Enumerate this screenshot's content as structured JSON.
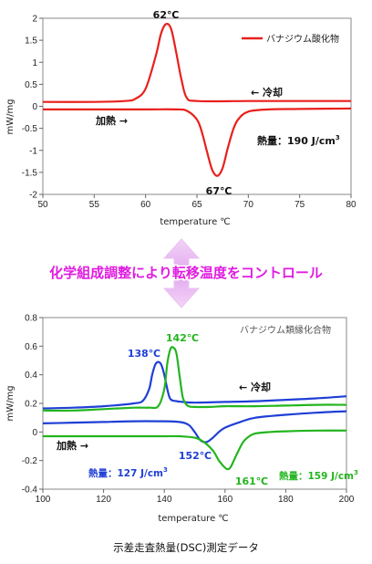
{
  "chart_data": [
    {
      "type": "line",
      "xlabel": "temperature ℃",
      "ylabel": "mW/mg",
      "xlim": [
        50,
        80
      ],
      "ylim": [
        -2,
        2
      ],
      "x_ticks": [
        50,
        55,
        60,
        65,
        70,
        75,
        80
      ],
      "y_ticks": [
        2,
        1.5,
        1,
        0.5,
        0,
        -0.5,
        -1,
        -1.5,
        -2
      ],
      "grid": false,
      "legend": {
        "position": "top-right",
        "entries": [
          "バナジウム酸化物"
        ]
      },
      "series": [
        {
          "name": "バナジウム酸化物",
          "color": "#e8201c",
          "x": [
            50,
            55,
            58,
            59,
            60,
            61,
            61.5,
            62,
            62.5,
            63,
            63.5,
            64,
            65,
            70,
            75,
            80
          ],
          "y": [
            0.1,
            0.1,
            0.12,
            0.17,
            0.4,
            1.15,
            1.65,
            1.87,
            1.75,
            1.2,
            0.6,
            0.2,
            0.12,
            0.12,
            0.12,
            0.12
          ]
        },
        {
          "name": "バナジウム酸化物",
          "color": "#e8201c",
          "x": [
            50,
            55,
            60,
            63,
            64,
            65,
            65.5,
            66,
            66.5,
            67,
            67.5,
            68,
            68.5,
            69,
            70,
            72,
            75,
            80
          ],
          "y": [
            -0.07,
            -0.07,
            -0.07,
            -0.07,
            -0.1,
            -0.3,
            -0.6,
            -1.05,
            -1.45,
            -1.58,
            -1.4,
            -0.95,
            -0.55,
            -0.3,
            -0.12,
            -0.07,
            -0.06,
            -0.05
          ]
        }
      ],
      "annotations": {
        "peak_cool": "62℃",
        "peak_heat": "67℃",
        "cool_label": "←  冷却",
        "heat_label": "加熱  →",
        "enthalpy": "熱量：190 J/cm",
        "enthalpy_sup": "3"
      }
    },
    {
      "type": "line",
      "xlabel": "temperature ℃",
      "ylabel": "mW/mg",
      "xlim": [
        100,
        200
      ],
      "ylim": [
        -0.4,
        0.8
      ],
      "x_ticks": [
        100,
        120,
        140,
        160,
        180,
        200
      ],
      "y_ticks": [
        0.8,
        0.6,
        0.4,
        0.2,
        0,
        -0.2,
        -0.4
      ],
      "grid": false,
      "title_in_plot": "バナジウム類縁化合物",
      "series": [
        {
          "color": "#1f3fd6",
          "x": [
            100,
            110,
            120,
            130,
            133,
            135,
            136,
            137,
            138,
            139,
            140,
            141,
            142,
            144,
            146,
            150,
            160,
            170,
            180,
            190,
            200
          ],
          "y": [
            0.165,
            0.17,
            0.18,
            0.2,
            0.22,
            0.3,
            0.4,
            0.47,
            0.49,
            0.47,
            0.4,
            0.3,
            0.23,
            0.215,
            0.21,
            0.205,
            0.21,
            0.215,
            0.225,
            0.235,
            0.25
          ]
        },
        {
          "color": "#1f3fd6",
          "x": [
            100,
            110,
            120,
            130,
            140,
            145,
            148,
            150,
            152,
            154,
            156,
            158,
            160,
            165,
            170,
            180,
            190,
            200
          ],
          "y": [
            0.06,
            0.065,
            0.07,
            0.075,
            0.075,
            0.07,
            0.05,
            0.0,
            -0.06,
            -0.07,
            -0.04,
            0.0,
            0.03,
            0.07,
            0.1,
            0.12,
            0.135,
            0.145
          ]
        },
        {
          "color": "#23b51f",
          "x": [
            100,
            110,
            120,
            130,
            135,
            138,
            140,
            141,
            142,
            143,
            144,
            145,
            146,
            147,
            148,
            150,
            155,
            160,
            170,
            180,
            190,
            200
          ],
          "y": [
            0.15,
            0.15,
            0.16,
            0.17,
            0.17,
            0.18,
            0.3,
            0.48,
            0.58,
            0.59,
            0.55,
            0.4,
            0.25,
            0.2,
            0.18,
            0.175,
            0.175,
            0.18,
            0.18,
            0.185,
            0.19,
            0.19
          ]
        },
        {
          "color": "#23b51f",
          "x": [
            100,
            110,
            120,
            130,
            140,
            145,
            150,
            153,
            156,
            158,
            160,
            161,
            162,
            164,
            166,
            168,
            170,
            175,
            180,
            190,
            200
          ],
          "y": [
            -0.03,
            -0.03,
            -0.03,
            -0.03,
            -0.03,
            -0.03,
            -0.04,
            -0.07,
            -0.13,
            -0.2,
            -0.25,
            -0.26,
            -0.24,
            -0.15,
            -0.07,
            -0.03,
            -0.01,
            0.0,
            0.005,
            0.01,
            0.01
          ]
        }
      ],
      "annotations": {
        "peak_blue_cool": "138℃",
        "peak_green_cool": "142℃",
        "peak_blue_heat": "152℃",
        "peak_green_heat": "161℃",
        "cool_label": "←  冷却",
        "heat_label": "加熱  →",
        "enthalpy_blue": "熱量：127 J/cm",
        "enthalpy_green": "熱量：159 J/cm",
        "enthalpy_sup": "3"
      }
    }
  ],
  "banner": "化学組成調整により転移温度をコントロール",
  "caption": "示差走査熱量(DSC)測定データ",
  "colors": {
    "red": "#e8201c",
    "blue": "#1f3fd6",
    "green": "#23b51f",
    "banner": "#e01ce0",
    "arrow": "#e8b8f0"
  }
}
